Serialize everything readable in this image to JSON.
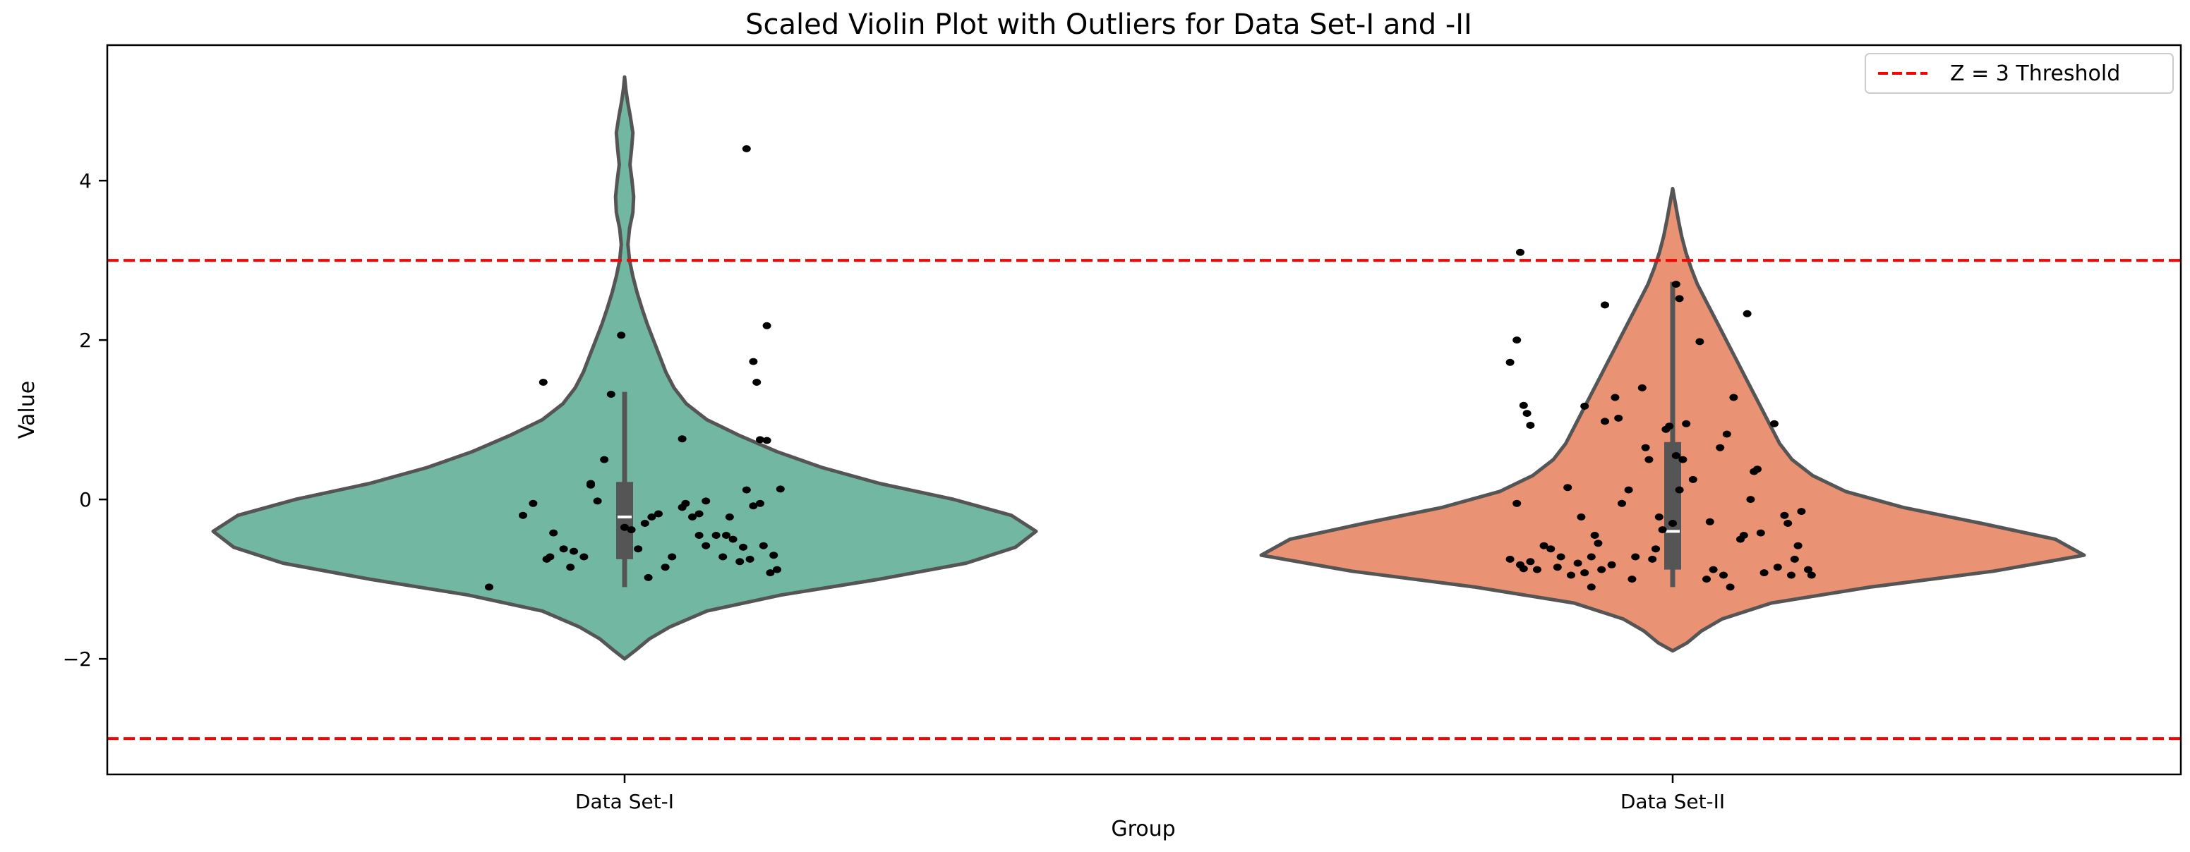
{
  "chart_data": {
    "type": "violin",
    "title": "Scaled Violin Plot with Outliers for Data Set-I and -II",
    "xlabel": "Group",
    "ylabel": "Value",
    "ylim": [
      -3.45,
      5.7
    ],
    "yticks": [
      -2,
      0,
      2,
      4
    ],
    "ytick_labels": [
      "−2",
      "0",
      "2",
      "4"
    ],
    "categories": [
      "Data Set-I",
      "Data Set-II"
    ],
    "grid": false,
    "legend": {
      "position": "top-right",
      "entries": [
        {
          "label": "Z = 3 Threshold",
          "color": "#ff0000",
          "style": "dashed"
        }
      ]
    },
    "threshold_lines": [
      3,
      -3
    ],
    "groups": [
      {
        "name": "Data Set-I",
        "color": "#72b7a1",
        "edge_color": "#555555",
        "box": {
          "q1": -0.75,
          "median": -0.22,
          "q3": 0.22,
          "whisker_low": -1.1,
          "whisker_high": 1.35
        },
        "density_profile": [
          [
            -2.0,
            0.0
          ],
          [
            -1.9,
            0.025
          ],
          [
            -1.75,
            0.06
          ],
          [
            -1.6,
            0.11
          ],
          [
            -1.4,
            0.2
          ],
          [
            -1.2,
            0.38
          ],
          [
            -1.0,
            0.62
          ],
          [
            -0.8,
            0.83
          ],
          [
            -0.6,
            0.95
          ],
          [
            -0.4,
            1.0
          ],
          [
            -0.2,
            0.94
          ],
          [
            0.0,
            0.8
          ],
          [
            0.2,
            0.62
          ],
          [
            0.4,
            0.48
          ],
          [
            0.6,
            0.37
          ],
          [
            0.8,
            0.28
          ],
          [
            1.0,
            0.2
          ],
          [
            1.2,
            0.15
          ],
          [
            1.4,
            0.12
          ],
          [
            1.6,
            0.1
          ],
          [
            1.8,
            0.085
          ],
          [
            2.0,
            0.07
          ],
          [
            2.2,
            0.055
          ],
          [
            2.4,
            0.042
          ],
          [
            2.6,
            0.03
          ],
          [
            2.8,
            0.02
          ],
          [
            3.0,
            0.012
          ],
          [
            3.2,
            0.008
          ],
          [
            3.4,
            0.012
          ],
          [
            3.6,
            0.02
          ],
          [
            3.8,
            0.022
          ],
          [
            4.0,
            0.018
          ],
          [
            4.2,
            0.013
          ],
          [
            4.4,
            0.017
          ],
          [
            4.6,
            0.02
          ],
          [
            4.8,
            0.014
          ],
          [
            5.0,
            0.007
          ],
          [
            5.15,
            0.003
          ],
          [
            5.3,
            0.0
          ]
        ],
        "points": [
          [
            -0.4,
            -1.1
          ],
          [
            -0.3,
            -0.2
          ],
          [
            -0.23,
            -0.75
          ],
          [
            -0.22,
            -0.72
          ],
          [
            -0.27,
            -0.05
          ],
          [
            -0.21,
            -0.42
          ],
          [
            -0.18,
            -0.62
          ],
          [
            -0.16,
            -0.85
          ],
          [
            -0.12,
            -0.72
          ],
          [
            -0.1,
            0.2
          ],
          [
            -0.1,
            0.18
          ],
          [
            -0.08,
            -0.02
          ],
          [
            -0.06,
            0.5
          ],
          [
            -0.04,
            1.32
          ],
          [
            -0.24,
            1.47
          ],
          [
            0.0,
            -0.35
          ],
          [
            0.02,
            -0.38
          ],
          [
            0.04,
            -0.62
          ],
          [
            0.07,
            -0.98
          ],
          [
            0.06,
            -0.3
          ],
          [
            0.08,
            -0.22
          ],
          [
            0.1,
            -0.18
          ],
          [
            0.12,
            -0.85
          ],
          [
            0.14,
            -0.72
          ],
          [
            0.17,
            -0.1
          ],
          [
            0.18,
            -0.05
          ],
          [
            0.2,
            -0.22
          ],
          [
            0.22,
            -0.45
          ],
          [
            0.24,
            -0.58
          ],
          [
            0.24,
            -0.02
          ],
          [
            0.27,
            -0.45
          ],
          [
            0.29,
            -0.72
          ],
          [
            0.3,
            -0.45
          ],
          [
            0.31,
            -0.22
          ],
          [
            0.32,
            -0.5
          ],
          [
            0.34,
            -0.78
          ],
          [
            0.35,
            -0.6
          ],
          [
            0.36,
            0.12
          ],
          [
            0.37,
            -0.75
          ],
          [
            0.38,
            -0.08
          ],
          [
            0.4,
            -0.05
          ],
          [
            0.41,
            -0.58
          ],
          [
            0.43,
            -0.92
          ],
          [
            0.44,
            -0.7
          ],
          [
            0.45,
            -0.88
          ],
          [
            0.46,
            0.13
          ],
          [
            0.38,
            1.73
          ],
          [
            0.39,
            1.47
          ],
          [
            0.4,
            0.75
          ],
          [
            0.42,
            0.74
          ],
          [
            0.42,
            2.18
          ],
          [
            0.17,
            0.76
          ],
          [
            -0.01,
            2.06
          ],
          [
            0.36,
            4.4
          ],
          [
            -0.15,
            -0.65
          ],
          [
            0.22,
            -0.18
          ]
        ]
      },
      {
        "name": "Data Set-II",
        "color": "#ea9274",
        "edge_color": "#555555",
        "box": {
          "q1": -0.88,
          "median": -0.4,
          "q3": 0.72,
          "whisker_low": -1.1,
          "whisker_high": 2.73
        },
        "density_profile": [
          [
            -1.9,
            0.0
          ],
          [
            -1.8,
            0.035
          ],
          [
            -1.65,
            0.07
          ],
          [
            -1.5,
            0.12
          ],
          [
            -1.3,
            0.24
          ],
          [
            -1.1,
            0.48
          ],
          [
            -0.9,
            0.78
          ],
          [
            -0.7,
            1.0
          ],
          [
            -0.5,
            0.93
          ],
          [
            -0.3,
            0.75
          ],
          [
            -0.1,
            0.56
          ],
          [
            0.1,
            0.42
          ],
          [
            0.3,
            0.34
          ],
          [
            0.5,
            0.29
          ],
          [
            0.7,
            0.26
          ],
          [
            0.9,
            0.24
          ],
          [
            1.1,
            0.22
          ],
          [
            1.3,
            0.2
          ],
          [
            1.5,
            0.18
          ],
          [
            1.7,
            0.16
          ],
          [
            1.9,
            0.14
          ],
          [
            2.1,
            0.12
          ],
          [
            2.3,
            0.1
          ],
          [
            2.5,
            0.08
          ],
          [
            2.7,
            0.06
          ],
          [
            2.9,
            0.045
          ],
          [
            3.1,
            0.032
          ],
          [
            3.3,
            0.022
          ],
          [
            3.5,
            0.014
          ],
          [
            3.7,
            0.007
          ],
          [
            3.9,
            0.0
          ]
        ],
        "points": [
          [
            -0.48,
            -0.75
          ],
          [
            -0.46,
            -0.05
          ],
          [
            -0.45,
            -0.82
          ],
          [
            -0.44,
            -0.87
          ],
          [
            -0.42,
            -0.78
          ],
          [
            -0.4,
            -0.88
          ],
          [
            -0.38,
            -0.58
          ],
          [
            -0.36,
            -0.62
          ],
          [
            -0.34,
            -0.85
          ],
          [
            -0.33,
            -0.72
          ],
          [
            -0.31,
            0.15
          ],
          [
            -0.3,
            -0.95
          ],
          [
            -0.28,
            -0.8
          ],
          [
            -0.26,
            -0.92
          ],
          [
            -0.24,
            -0.72
          ],
          [
            -0.24,
            -1.1
          ],
          [
            -0.23,
            -0.45
          ],
          [
            -0.22,
            -0.55
          ],
          [
            -0.21,
            -0.88
          ],
          [
            -0.2,
            0.98
          ],
          [
            -0.18,
            -0.82
          ],
          [
            -0.16,
            1.02
          ],
          [
            -0.15,
            -0.05
          ],
          [
            -0.13,
            0.12
          ],
          [
            -0.12,
            -1.0
          ],
          [
            -0.11,
            -0.72
          ],
          [
            -0.09,
            1.4
          ],
          [
            -0.08,
            0.65
          ],
          [
            -0.07,
            0.5
          ],
          [
            -0.06,
            -0.75
          ],
          [
            -0.05,
            -0.62
          ],
          [
            -0.04,
            -0.22
          ],
          [
            -0.03,
            -0.38
          ],
          [
            -0.02,
            0.88
          ],
          [
            -0.01,
            0.92
          ],
          [
            0.0,
            -0.3
          ],
          [
            0.01,
            0.55
          ],
          [
            0.02,
            0.12
          ],
          [
            0.03,
            0.5
          ],
          [
            0.04,
            0.95
          ],
          [
            0.06,
            0.25
          ],
          [
            0.08,
            1.98
          ],
          [
            0.1,
            -1.0
          ],
          [
            0.11,
            -0.28
          ],
          [
            0.12,
            -0.88
          ],
          [
            0.14,
            0.65
          ],
          [
            0.15,
            -0.95
          ],
          [
            0.16,
            0.82
          ],
          [
            0.17,
            -1.1
          ],
          [
            0.18,
            1.28
          ],
          [
            0.2,
            -0.5
          ],
          [
            0.21,
            -0.45
          ],
          [
            0.23,
            0.0
          ],
          [
            0.24,
            0.35
          ],
          [
            0.25,
            0.38
          ],
          [
            0.26,
            -0.42
          ],
          [
            0.27,
            -0.92
          ],
          [
            0.3,
            0.95
          ],
          [
            0.31,
            -0.85
          ],
          [
            0.33,
            -0.2
          ],
          [
            0.34,
            -0.3
          ],
          [
            0.35,
            -0.95
          ],
          [
            0.36,
            -0.75
          ],
          [
            0.37,
            -0.58
          ],
          [
            0.38,
            -0.15
          ],
          [
            0.4,
            -0.88
          ],
          [
            0.41,
            -0.95
          ],
          [
            -0.48,
            1.72
          ],
          [
            -0.46,
            2.0
          ],
          [
            -0.44,
            1.18
          ],
          [
            -0.43,
            1.08
          ],
          [
            -0.42,
            0.93
          ],
          [
            -0.26,
            1.17
          ],
          [
            -0.2,
            2.44
          ],
          [
            -0.17,
            1.28
          ],
          [
            0.01,
            2.7
          ],
          [
            0.02,
            2.52
          ],
          [
            0.22,
            2.33
          ],
          [
            -0.45,
            3.1
          ],
          [
            -0.27,
            -0.22
          ]
        ]
      }
    ]
  }
}
